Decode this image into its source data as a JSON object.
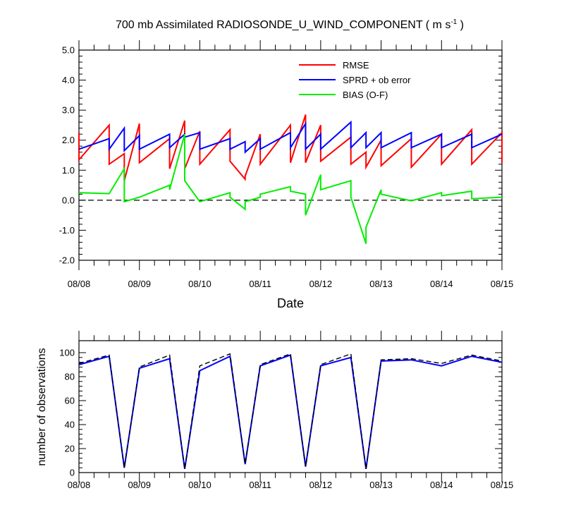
{
  "chart_data": [
    {
      "type": "line",
      "title": "700 mb Assimilated RADIOSONDE_U_WIND_COMPONENT ( m s",
      "title_superscript": "-1",
      "title_suffix": " )",
      "xlabel": "Date",
      "ylabel": "",
      "x_tick_labels": [
        "08/08",
        "08/09",
        "08/10",
        "08/11",
        "08/12",
        "08/13",
        "08/14",
        "08/15"
      ],
      "xlim": [
        0,
        7
      ],
      "ylim": [
        -2.0,
        5.0
      ],
      "y_ticks": [
        "-2.0",
        "-1.0",
        "0.0",
        "1.0",
        "2.0",
        "3.0",
        "4.0",
        "5.0"
      ],
      "reference_line": {
        "y": 0.0,
        "style": "dashed",
        "color": "#000000"
      },
      "legend_placement": "top-right",
      "series": [
        {
          "name": "RMSE",
          "color": "#ff0000",
          "points": [
            [
              0,
              2.25
            ],
            [
              0,
              1.35
            ],
            [
              0.5,
              2.5
            ],
            [
              0.5,
              1.2
            ],
            [
              0.75,
              1.55
            ],
            [
              0.75,
              0.65
            ],
            [
              1,
              2.55
            ],
            [
              1,
              1.25
            ],
            [
              1.5,
              2.05
            ],
            [
              1.5,
              1.05
            ],
            [
              1.75,
              2.65
            ],
            [
              1.75,
              1.05
            ],
            [
              2,
              2.3
            ],
            [
              2,
              1.2
            ],
            [
              2.5,
              2.35
            ],
            [
              2.5,
              1.3
            ],
            [
              2.75,
              0.7
            ],
            [
              2.75,
              0.8
            ],
            [
              3,
              2.2
            ],
            [
              3,
              1.2
            ],
            [
              3.5,
              2.5
            ],
            [
              3.5,
              1.25
            ],
            [
              3.75,
              2.85
            ],
            [
              3.75,
              1.25
            ],
            [
              4,
              2.5
            ],
            [
              4,
              1.3
            ],
            [
              4.5,
              2.1
            ],
            [
              4.5,
              1.2
            ],
            [
              4.75,
              1.6
            ],
            [
              4.75,
              1.1
            ],
            [
              5,
              2.0
            ],
            [
              5,
              1.15
            ],
            [
              5.5,
              2.05
            ],
            [
              5.5,
              1.1
            ],
            [
              6,
              2.2
            ],
            [
              6,
              1.2
            ],
            [
              6.5,
              2.35
            ],
            [
              6.5,
              1.2
            ],
            [
              7,
              2.25
            ],
            [
              7,
              1.25
            ]
          ]
        },
        {
          "name": "SPRD + ob error",
          "color": "#0000ff",
          "points": [
            [
              0,
              1.7
            ],
            [
              0.5,
              2.05
            ],
            [
              0.5,
              1.7
            ],
            [
              0.75,
              2.4
            ],
            [
              0.75,
              1.65
            ],
            [
              1,
              2.15
            ],
            [
              1,
              1.7
            ],
            [
              1.5,
              2.2
            ],
            [
              1.5,
              1.75
            ],
            [
              1.75,
              2.2
            ],
            [
              1.75,
              2.1
            ],
            [
              2,
              2.25
            ],
            [
              2,
              1.7
            ],
            [
              2.5,
              2.05
            ],
            [
              2.5,
              1.7
            ],
            [
              2.75,
              1.95
            ],
            [
              2.75,
              1.6
            ],
            [
              3,
              2.05
            ],
            [
              3,
              1.7
            ],
            [
              3.5,
              2.25
            ],
            [
              3.5,
              1.75
            ],
            [
              3.75,
              2.55
            ],
            [
              3.75,
              1.7
            ],
            [
              4,
              2.2
            ],
            [
              4,
              1.7
            ],
            [
              4.5,
              2.6
            ],
            [
              4.5,
              1.75
            ],
            [
              4.75,
              2.25
            ],
            [
              4.75,
              1.75
            ],
            [
              5,
              2.25
            ],
            [
              5,
              1.75
            ],
            [
              5.5,
              2.25
            ],
            [
              5.5,
              1.75
            ],
            [
              6,
              2.2
            ],
            [
              6,
              1.75
            ],
            [
              6.5,
              2.2
            ],
            [
              6.5,
              1.75
            ],
            [
              7,
              2.2
            ]
          ]
        },
        {
          "name": "BIAS (O-F)",
          "color": "#00ee00",
          "points": [
            [
              0,
              0.25
            ],
            [
              0.5,
              0.22
            ],
            [
              0.75,
              1.05
            ],
            [
              0.75,
              -0.05
            ],
            [
              1,
              0.1
            ],
            [
              1.5,
              0.5
            ],
            [
              1.5,
              0.35
            ],
            [
              1.75,
              2.2
            ],
            [
              1.75,
              0.65
            ],
            [
              2,
              -0.05
            ],
            [
              2.5,
              0.25
            ],
            [
              2.5,
              0.1
            ],
            [
              2.75,
              -0.3
            ],
            [
              2.75,
              -0.05
            ],
            [
              3,
              0.1
            ],
            [
              3,
              0.2
            ],
            [
              3.5,
              0.45
            ],
            [
              3.5,
              0.3
            ],
            [
              3.75,
              0.2
            ],
            [
              3.75,
              -0.5
            ],
            [
              4,
              0.85
            ],
            [
              4,
              0.35
            ],
            [
              4.5,
              0.65
            ],
            [
              4.5,
              0.1
            ],
            [
              4.75,
              -1.45
            ],
            [
              4.75,
              -0.9
            ],
            [
              5,
              0.35
            ],
            [
              5,
              0.2
            ],
            [
              5.5,
              -0.02
            ],
            [
              6,
              0.25
            ],
            [
              6,
              0.15
            ],
            [
              6.5,
              0.3
            ],
            [
              6.5,
              0.05
            ],
            [
              7,
              0.1
            ]
          ]
        }
      ]
    },
    {
      "type": "line",
      "title": "",
      "xlabel": "",
      "ylabel": "number of observations",
      "x_tick_labels": [
        "08/08",
        "08/09",
        "08/10",
        "08/11",
        "08/12",
        "08/13",
        "08/14",
        "08/15"
      ],
      "xlim": [
        0,
        7
      ],
      "ylim": [
        0,
        110
      ],
      "y_ticks": [
        "0",
        "20",
        "40",
        "60",
        "80",
        "100"
      ],
      "series": [
        {
          "color": "#0000ff",
          "style": "solid",
          "points": [
            [
              0,
              90
            ],
            [
              0.5,
              97
            ],
            [
              0.75,
              4
            ],
            [
              1,
              87
            ],
            [
              1.5,
              95
            ],
            [
              1.75,
              3
            ],
            [
              2,
              85
            ],
            [
              2.5,
              97
            ],
            [
              2.75,
              7
            ],
            [
              3,
              89
            ],
            [
              3.5,
              98
            ],
            [
              3.75,
              5
            ],
            [
              4,
              89
            ],
            [
              4.5,
              96
            ],
            [
              4.75,
              3
            ],
            [
              5,
              93
            ],
            [
              5.5,
              94
            ],
            [
              6,
              89
            ],
            [
              6.5,
              97
            ],
            [
              7,
              92
            ]
          ]
        },
        {
          "color": "#000000",
          "style": "dashed",
          "points": [
            [
              0,
              91
            ],
            [
              0.5,
              98
            ],
            [
              0.75,
              4
            ],
            [
              1,
              88
            ],
            [
              1.5,
              98
            ],
            [
              1.75,
              3
            ],
            [
              2,
              89
            ],
            [
              2.5,
              99
            ],
            [
              2.75,
              7
            ],
            [
              3,
              90
            ],
            [
              3.5,
              99
            ],
            [
              3.75,
              5
            ],
            [
              4,
              90
            ],
            [
              4.5,
              99
            ],
            [
              4.75,
              3
            ],
            [
              5,
              94
            ],
            [
              5.5,
              95
            ],
            [
              6,
              91
            ],
            [
              6.5,
              98
            ],
            [
              7,
              93
            ]
          ]
        }
      ]
    }
  ]
}
